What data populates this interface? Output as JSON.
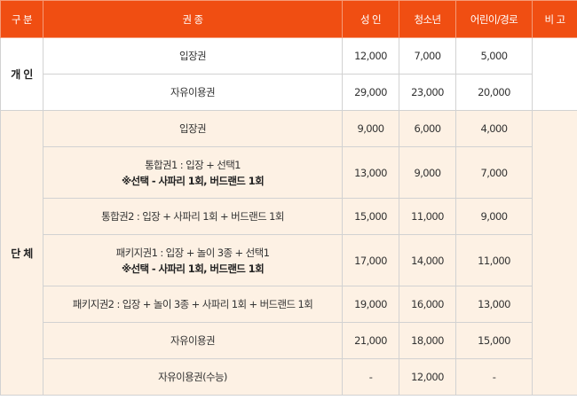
{
  "headers": {
    "category": "구 분",
    "ticket_type": "권 종",
    "adult": "성 인",
    "youth": "청소년",
    "child_senior": "어린이/경로",
    "remarks": "비 고"
  },
  "groups": [
    {
      "category": "개 인",
      "rows": [
        {
          "ticket": "입장권",
          "note": "",
          "adult": "12,000",
          "youth": "7,000",
          "child": "5,000"
        },
        {
          "ticket": "자유이용권",
          "note": "",
          "adult": "29,000",
          "youth": "23,000",
          "child": "20,000"
        }
      ]
    },
    {
      "category": "단 체",
      "rows": [
        {
          "ticket": "입장권",
          "note": "",
          "adult": "9,000",
          "youth": "6,000",
          "child": "4,000"
        },
        {
          "ticket": "통합권1 : 입장 + 선택1",
          "note": "※선택 - 사파리 1회, 버드랜드 1회",
          "adult": "13,000",
          "youth": "9,000",
          "child": "7,000"
        },
        {
          "ticket": "통합권2 : 입장 + 사파리 1회 + 버드랜드 1회",
          "note": "",
          "adult": "15,000",
          "youth": "11,000",
          "child": "9,000"
        },
        {
          "ticket": "패키지권1 : 입장 + 놀이 3종 + 선택1",
          "note": "※선택 - 사파리 1회, 버드랜드 1회",
          "adult": "17,000",
          "youth": "14,000",
          "child": "11,000"
        },
        {
          "ticket": "패키지권2 : 입장 + 놀이 3종 + 사파리 1회 + 버드랜드 1회",
          "note": "",
          "adult": "19,000",
          "youth": "16,000",
          "child": "13,000"
        },
        {
          "ticket": "자유이용권",
          "note": "",
          "adult": "21,000",
          "youth": "18,000",
          "child": "15,000"
        },
        {
          "ticket": "자유이용권(수능)",
          "note": "",
          "adult": "-",
          "youth": "12,000",
          "child": "-"
        }
      ]
    }
  ],
  "colors": {
    "header_bg": "#f04e12",
    "group_bg": "#fdf1e4",
    "border": "#d2d2d2"
  }
}
